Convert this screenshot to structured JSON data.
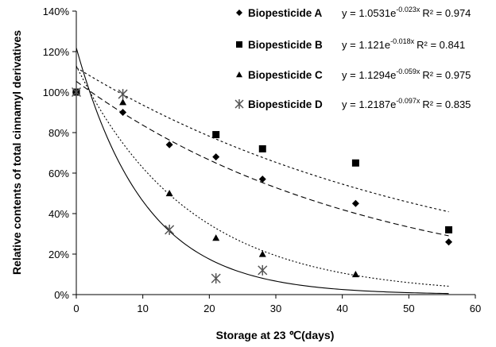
{
  "chart_data": {
    "type": "scatter",
    "title": "",
    "xlabel": "Storage at 23 ℃(days)",
    "ylabel": "Relative contents of total cinnamyl derivatives",
    "xlim": [
      0,
      60
    ],
    "ylim": [
      0,
      140
    ],
    "x_ticks": [
      "0",
      "10",
      "20",
      "30",
      "40",
      "50",
      "60"
    ],
    "y_ticks": [
      "0%",
      "20%",
      "40%",
      "60%",
      "80%",
      "100%",
      "120%",
      "140%"
    ],
    "grid": false,
    "legend_position": "top-right",
    "series": [
      {
        "name": "Biopesticide A",
        "marker": "diamond",
        "line_style": "dashed",
        "fit": {
          "a": 1.0531,
          "b": -0.023
        },
        "equation_prefix": "y = 1.0531e",
        "equation_exponent": "-0.023x",
        "r2": "R² = 0.974",
        "points": [
          [
            0,
            100
          ],
          [
            7,
            90
          ],
          [
            14,
            74
          ],
          [
            21,
            68
          ],
          [
            28,
            57
          ],
          [
            42,
            45
          ],
          [
            56,
            26
          ]
        ]
      },
      {
        "name": "Biopesticide B",
        "marker": "square",
        "line_style": "dotted",
        "fit": {
          "a": 1.121,
          "b": -0.018
        },
        "equation_prefix": "y = 1.121e",
        "equation_exponent": "-0.018x",
        "r2": "R² = 0.841",
        "points": [
          [
            0,
            100
          ],
          [
            21,
            79
          ],
          [
            28,
            72
          ],
          [
            42,
            65
          ],
          [
            56,
            32
          ]
        ]
      },
      {
        "name": "Biopesticide C",
        "marker": "triangle",
        "line_style": "fine-dotted",
        "fit": {
          "a": 1.1294,
          "b": -0.059
        },
        "equation_prefix": "y = 1.1294e",
        "equation_exponent": "-0.059x",
        "r2": "R² = 0.975",
        "points": [
          [
            0,
            100
          ],
          [
            7,
            95
          ],
          [
            14,
            50
          ],
          [
            21,
            28
          ],
          [
            28,
            20
          ],
          [
            42,
            10
          ]
        ]
      },
      {
        "name": "Biopesticide D",
        "marker": "asterisk",
        "line_style": "solid",
        "fit": {
          "a": 1.2187,
          "b": -0.097
        },
        "equation_prefix": "y = 1.2187e",
        "equation_exponent": "-0.097x",
        "r2": "R² = 0.835",
        "points": [
          [
            0,
            100
          ],
          [
            7,
            99
          ],
          [
            14,
            32
          ],
          [
            21,
            8
          ],
          [
            28,
            12
          ]
        ]
      }
    ]
  }
}
